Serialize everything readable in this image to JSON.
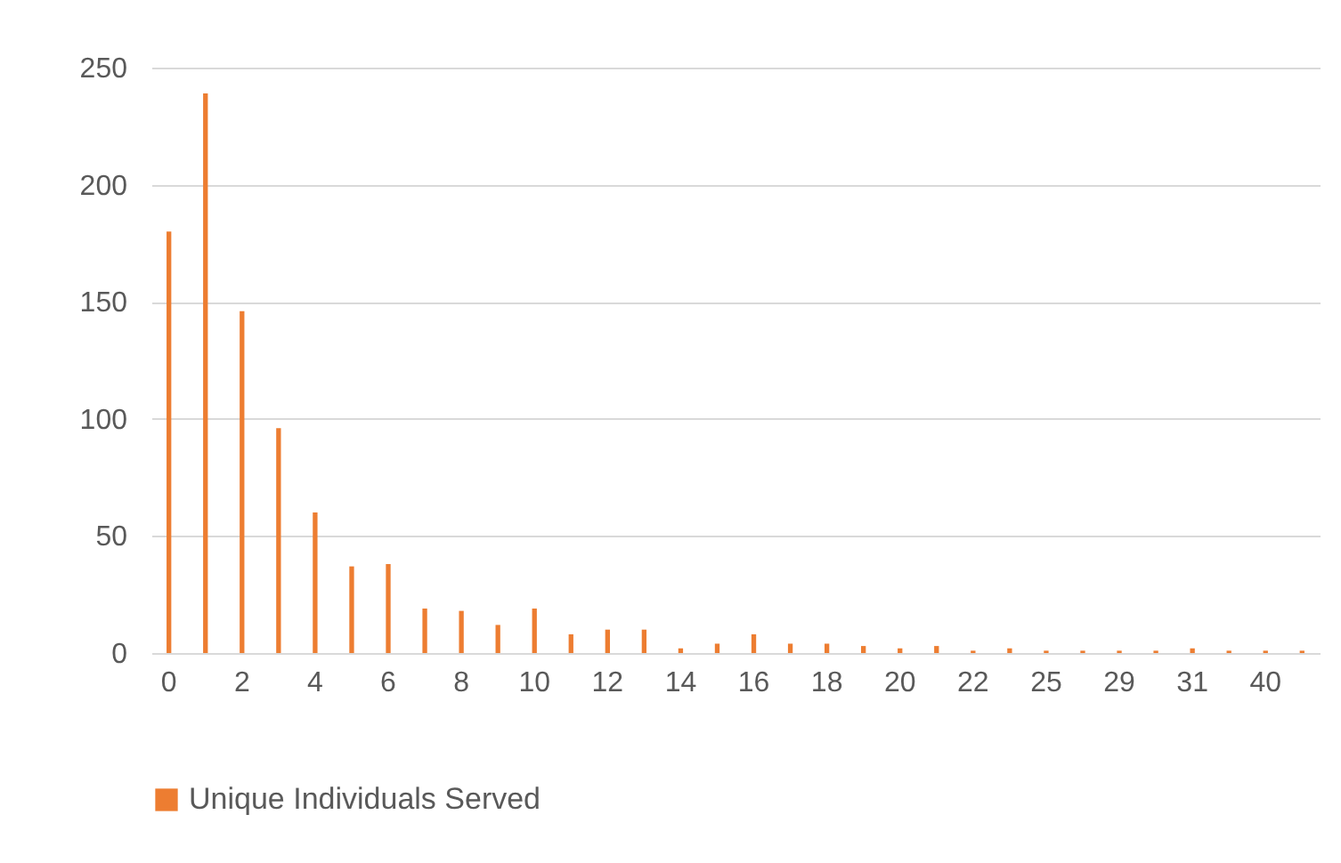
{
  "chart_data": {
    "type": "bar",
    "categories": [
      "0",
      null,
      "2",
      null,
      "4",
      null,
      "6",
      null,
      "8",
      null,
      "10",
      null,
      "12",
      null,
      "14",
      null,
      "16",
      null,
      "18",
      null,
      "20",
      null,
      "22",
      null,
      "25",
      null,
      "29",
      null,
      "31",
      null,
      "40",
      null
    ],
    "series": [
      {
        "name": "Unique Individuals Served",
        "color": "#ed7d31",
        "values": [
          180,
          239,
          146,
          96,
          60,
          37,
          38,
          19,
          18,
          12,
          19,
          8,
          10,
          10,
          2,
          4,
          8,
          4,
          4,
          3,
          2,
          3,
          1,
          2,
          1,
          1,
          1,
          1,
          2,
          1,
          1,
          1
        ]
      }
    ],
    "ylim": [
      0,
      250
    ],
    "yticks": [
      0,
      50,
      100,
      150,
      200,
      250
    ],
    "grid": "y",
    "legend": "bottom"
  }
}
